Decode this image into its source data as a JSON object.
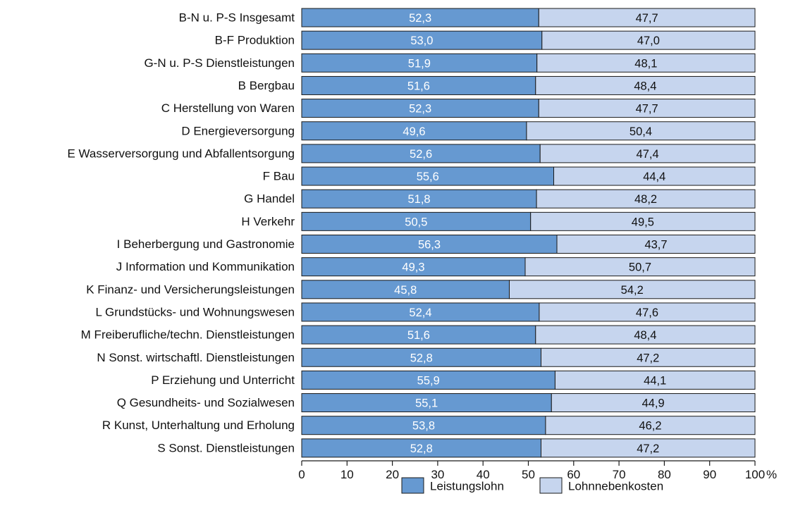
{
  "chart_data": {
    "type": "bar",
    "orientation": "horizontal",
    "stacked": true,
    "categories": [
      "B-N u. P-S Insgesamt",
      "B-F Produktion",
      "G-N u. P-S Dienstleistungen",
      "B Bergbau",
      "C Herstellung von Waren",
      "D Energieversorgung",
      "E Wasserversorgung und Abfallentsorgung",
      "F Bau",
      "G Handel",
      "H Verkehr",
      "I Beherbergung und Gastronomie",
      "J Information und Kommunikation",
      "K Finanz- und Versicherungsleistungen",
      "L Grundstücks- und Wohnungswesen",
      "M Freiberufliche/techn. Dienstleistungen",
      "N Sonst. wirtschaftl. Dienstleistungen",
      "P Erziehung und Unterricht",
      "Q Gesundheits- und Sozialwesen",
      "R Kunst, Unterhaltung und Erholung",
      "S Sonst. Dienstleistungen"
    ],
    "series": [
      {
        "name": "Leistungslohn",
        "color": "#6699d1",
        "values": [
          52.3,
          53.0,
          51.9,
          51.6,
          52.3,
          49.6,
          52.6,
          55.6,
          51.8,
          50.5,
          56.3,
          49.3,
          45.8,
          52.4,
          51.6,
          52.8,
          55.9,
          55.1,
          53.8,
          52.8
        ],
        "value_labels": [
          "52,3",
          "53,0",
          "51,9",
          "51,6",
          "52,3",
          "49,6",
          "52,6",
          "55,6",
          "51,8",
          "50,5",
          "56,3",
          "49,3",
          "45,8",
          "52,4",
          "51,6",
          "52,8",
          "55,9",
          "55,1",
          "53,8",
          "52,8"
        ]
      },
      {
        "name": "Lohnnebenkosten",
        "color": "#c6d5ee",
        "values": [
          47.7,
          47.0,
          48.1,
          48.4,
          47.7,
          50.4,
          47.4,
          44.4,
          48.2,
          49.5,
          43.7,
          50.7,
          54.2,
          47.6,
          48.4,
          47.2,
          44.1,
          44.9,
          46.2,
          47.2
        ],
        "value_labels": [
          "47,7",
          "47,0",
          "48,1",
          "48,4",
          "47,7",
          "50,4",
          "47,4",
          "44,4",
          "48,2",
          "49,5",
          "43,7",
          "50,7",
          "54,2",
          "47,6",
          "48,4",
          "47,2",
          "44,1",
          "44,9",
          "46,2",
          "47,2"
        ]
      }
    ],
    "xlim": [
      0,
      100
    ],
    "x_ticks": [
      "0",
      "10",
      "20",
      "30",
      "40",
      "50",
      "60",
      "70",
      "80",
      "90",
      "100"
    ],
    "x_unit": "%",
    "grid": false,
    "legend": "bottom"
  }
}
